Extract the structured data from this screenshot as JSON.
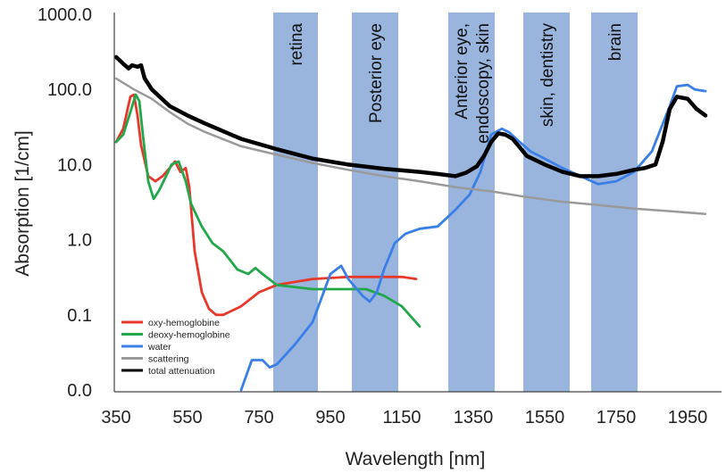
{
  "chart_data": {
    "type": "line",
    "xlabel": "Wavelength [nm]",
    "ylabel": "Absorption [1/cm]",
    "xlim": [
      350,
      2000
    ],
    "x_ticks": [
      350,
      550,
      750,
      950,
      1150,
      1350,
      1550,
      1750,
      1950
    ],
    "y_scale": "log",
    "y_ticks": [
      0.01,
      0.1,
      1,
      10,
      100,
      1000
    ],
    "y_tick_labels": [
      "0.0",
      "0.1",
      "1.0",
      "10.0",
      "100.0",
      "1000.0"
    ],
    "grid": false,
    "legend_position": "bottom-left",
    "bands": [
      {
        "label": "retina",
        "lines": [
          "retina"
        ],
        "x0": 790,
        "x1": 915
      },
      {
        "label": "Posterior eye",
        "lines": [
          "Posterior eye"
        ],
        "x0": 1010,
        "x1": 1140
      },
      {
        "label": "Anterior eye, endoscopy, skin",
        "lines": [
          "Anterior eye,",
          "endoscopy, skin"
        ],
        "x0": 1280,
        "x1": 1410
      },
      {
        "label": "skin, dentistry",
        "lines": [
          "skin, dentistry"
        ],
        "x0": 1490,
        "x1": 1620
      },
      {
        "label": "brain",
        "lines": [
          "brain"
        ],
        "x0": 1680,
        "x1": 1810
      }
    ],
    "band_color": "#7fa3d6",
    "series": [
      {
        "name": "oxy-hemoglobine",
        "color": "#e8382a",
        "x": [
          350,
          370,
          390,
          400,
          410,
          420,
          440,
          460,
          480,
          500,
          515,
          530,
          545,
          555,
          570,
          590,
          610,
          630,
          650,
          700,
          750,
          800,
          900,
          1000,
          1100,
          1150,
          1190
        ],
        "y": [
          20,
          30,
          80,
          85,
          45,
          18,
          7,
          6,
          7,
          9,
          11,
          8,
          9,
          5,
          0.7,
          0.2,
          0.12,
          0.1,
          0.1,
          0.13,
          0.2,
          0.25,
          0.3,
          0.32,
          0.32,
          0.32,
          0.3
        ]
      },
      {
        "name": "deoxy-hemoglobine",
        "color": "#22a84a",
        "x": [
          350,
          370,
          390,
          405,
          415,
          425,
          440,
          455,
          470,
          490,
          505,
          525,
          545,
          560,
          590,
          620,
          650,
          690,
          720,
          740,
          760,
          800,
          900,
          1000,
          1050,
          1100,
          1150,
          1200
        ],
        "y": [
          20,
          25,
          50,
          85,
          70,
          25,
          6,
          3.5,
          4.5,
          7,
          10,
          11,
          6,
          3,
          1.5,
          0.9,
          0.7,
          0.4,
          0.35,
          0.42,
          0.35,
          0.25,
          0.22,
          0.22,
          0.22,
          0.18,
          0.13,
          0.07
        ]
      },
      {
        "name": "water",
        "color": "#3a7fe8",
        "x": [
          700,
          730,
          760,
          780,
          800,
          850,
          900,
          950,
          980,
          1000,
          1040,
          1060,
          1080,
          1100,
          1130,
          1160,
          1200,
          1250,
          1300,
          1340,
          1370,
          1400,
          1430,
          1450,
          1480,
          1510,
          1550,
          1600,
          1650,
          1700,
          1750,
          1800,
          1850,
          1900,
          1920,
          1950,
          1970,
          2000
        ],
        "y": [
          0.01,
          0.025,
          0.025,
          0.02,
          0.022,
          0.04,
          0.08,
          0.35,
          0.45,
          0.3,
          0.18,
          0.15,
          0.2,
          0.4,
          0.9,
          1.2,
          1.4,
          1.5,
          2.5,
          4,
          8,
          25,
          30,
          27,
          20,
          15,
          12,
          9,
          7,
          5.5,
          6,
          8,
          15,
          60,
          110,
          115,
          100,
          95
        ]
      },
      {
        "name": "scattering",
        "color": "#9a9a9a",
        "x": [
          350,
          400,
          450,
          500,
          550,
          600,
          700,
          800,
          900,
          1000,
          1100,
          1200,
          1300,
          1400,
          1500,
          1600,
          1700,
          1800,
          1900,
          2000
        ],
        "y": [
          140,
          100,
          75,
          50,
          35,
          27,
          17.5,
          13.5,
          10.5,
          8.5,
          7,
          6,
          5,
          4.4,
          3.7,
          3.2,
          2.9,
          2.6,
          2.4,
          2.2
        ]
      },
      {
        "name": "total attenuation",
        "color": "#000000",
        "x": [
          350,
          370,
          385,
          395,
          410,
          420,
          430,
          450,
          500,
          550,
          600,
          700,
          800,
          900,
          1000,
          1100,
          1200,
          1250,
          1300,
          1330,
          1360,
          1380,
          1400,
          1420,
          1440,
          1460,
          1480,
          1500,
          1550,
          1600,
          1650,
          1700,
          1750,
          1800,
          1830,
          1860,
          1880,
          1900,
          1920,
          1950,
          1975,
          2000
        ],
        "y": [
          270,
          220,
          190,
          210,
          200,
          210,
          140,
          100,
          60,
          45,
          35,
          22,
          16,
          12,
          10,
          8.8,
          8.0,
          7.5,
          7.0,
          7.8,
          9.5,
          13,
          20,
          26,
          25,
          22,
          17,
          13,
          10,
          8,
          7,
          7,
          7.5,
          8.5,
          9,
          10,
          20,
          55,
          80,
          75,
          55,
          45
        ]
      }
    ]
  }
}
